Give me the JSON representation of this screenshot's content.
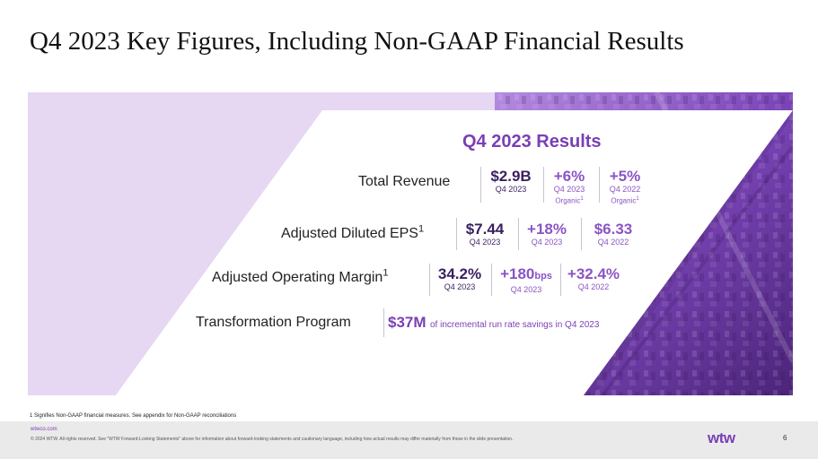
{
  "page": {
    "title": "Q4 2023 Key Figures, Including Non-GAAP Financial Results",
    "results_heading": "Q4 2023 Results",
    "footnote": "1 Signifies Non-GAAP financial measures. See appendix for Non-GAAP reconciliations",
    "page_number": "6"
  },
  "rows": {
    "revenue": {
      "label": "Total Revenue",
      "m1": {
        "value": "$2.9B",
        "sub": "Q4 2023"
      },
      "m2": {
        "value": "+6%",
        "sub": "Q4 2023",
        "sub2": "Organic"
      },
      "m3": {
        "value": "+5%",
        "sub": "Q4 2022",
        "sub2": "Organic"
      }
    },
    "eps": {
      "label": "Adjusted Diluted EPS",
      "m1": {
        "value": "$7.44",
        "sub": "Q4 2023"
      },
      "m2": {
        "value": "+18%",
        "sub": "Q4 2023"
      },
      "m3": {
        "value": "$6.33",
        "sub": "Q4 2022"
      }
    },
    "margin": {
      "label": "Adjusted Operating Margin",
      "m1": {
        "value": "34.2%",
        "sub": "Q4 2023"
      },
      "m2": {
        "value": "+180",
        "unit": "bps",
        "sub": "Q4 2023"
      },
      "m3": {
        "value": "+32.4%",
        "sub": "Q4 2022"
      }
    },
    "transformation": {
      "label": "Transformation Program",
      "value": "$37M",
      "text": "of incremental run rate savings in Q4 2023"
    }
  },
  "footer": {
    "site": "wtwco.com",
    "legal": "© 2024 WTW. All rights reserved. See \"WTW Forward-Looking Statements\" above for information about forward-looking statements and cautionary language, including how actual results may differ materially from those in the slide presentation.",
    "logo": "wtw"
  },
  "colors": {
    "accent": "#7a3fb5",
    "panel_light": "#e6d7f3",
    "panel_dark": "#5a2f8f",
    "dark_text": "#3a1f60"
  }
}
